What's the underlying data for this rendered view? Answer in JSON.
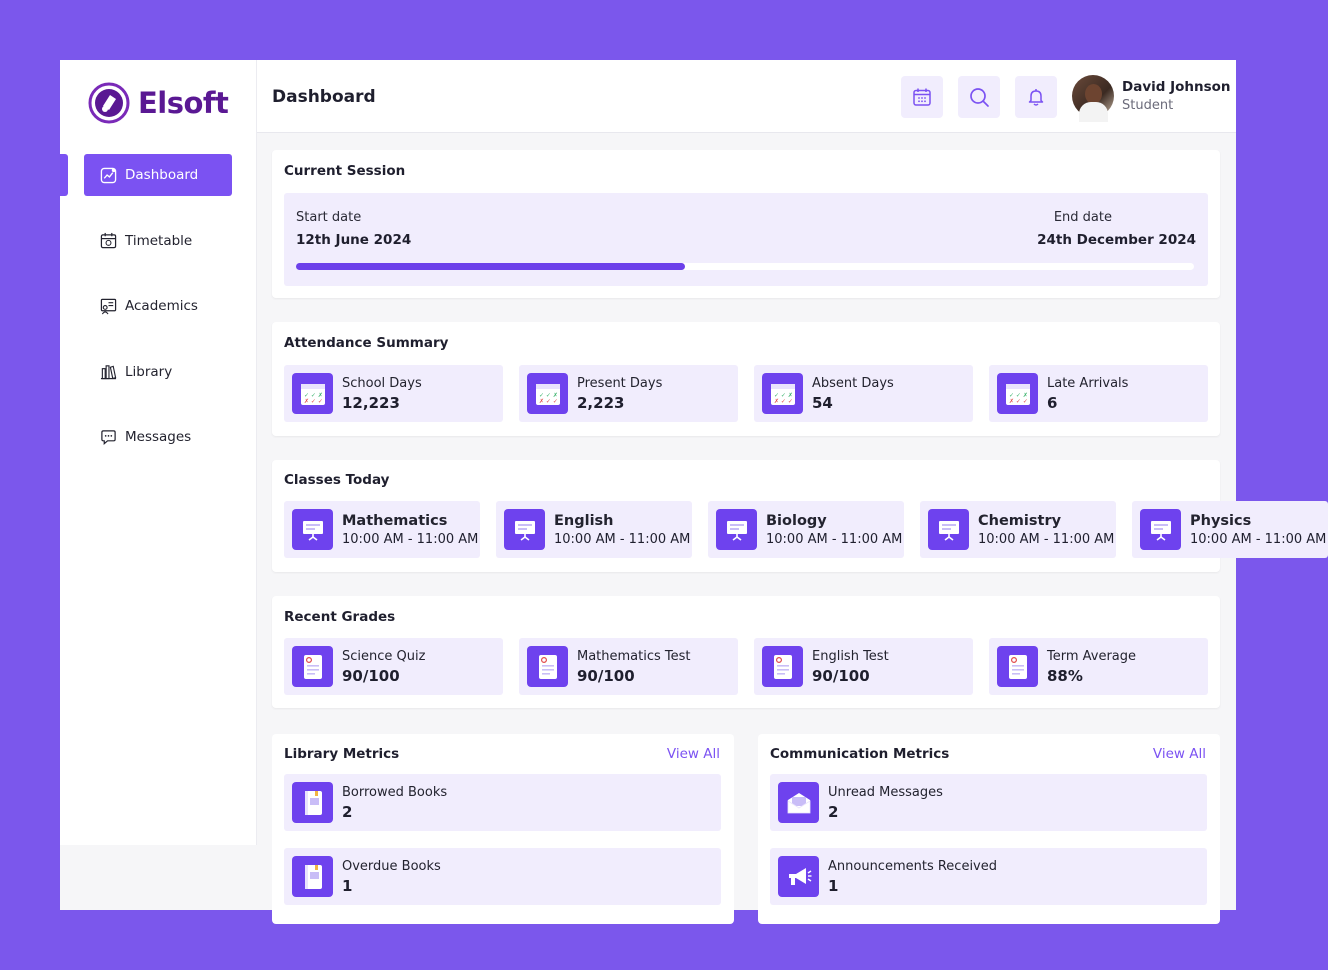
{
  "brand": {
    "name": "Elsoft"
  },
  "nav": [
    {
      "label": "Dashboard",
      "icon": "dashboard-icon",
      "active": true
    },
    {
      "label": "Timetable",
      "icon": "calendar-icon",
      "active": false
    },
    {
      "label": "Academics",
      "icon": "academics-icon",
      "active": false
    },
    {
      "label": "Library",
      "icon": "library-icon",
      "active": false
    },
    {
      "label": "Messages",
      "icon": "messages-icon",
      "active": false
    }
  ],
  "header": {
    "title": "Dashboard",
    "user": {
      "name": "David Johnson",
      "role": "Student"
    }
  },
  "session": {
    "title": "Current Session",
    "start_label": "Start date",
    "start_value": "12th June 2024",
    "end_label": "End date",
    "end_value": "24th December 2024",
    "progress": 0.433
  },
  "attendance": {
    "title": "Attendance Summary",
    "items": [
      {
        "label": "School Days",
        "value": "12,223"
      },
      {
        "label": "Present Days",
        "value": "2,223"
      },
      {
        "label": "Absent Days",
        "value": "54"
      },
      {
        "label": "Late Arrivals",
        "value": "6"
      }
    ]
  },
  "classes": {
    "title": "Classes Today",
    "items": [
      {
        "label": "Mathematics",
        "time": "10:00 AM - 11:00 AM"
      },
      {
        "label": "English",
        "time": "10:00 AM - 11:00 AM"
      },
      {
        "label": "Biology",
        "time": "10:00 AM - 11:00 AM"
      },
      {
        "label": "Chemistry",
        "time": "10:00 AM - 11:00 AM"
      },
      {
        "label": "Physics",
        "time": "10:00 AM - 11:00 AM"
      }
    ]
  },
  "grades": {
    "title": "Recent Grades",
    "items": [
      {
        "label": "Science Quiz",
        "value": "90/100"
      },
      {
        "label": "Mathematics Test",
        "value": "90/100"
      },
      {
        "label": "English Test",
        "value": "90/100"
      },
      {
        "label": "Term Average",
        "value": "88%"
      }
    ]
  },
  "library": {
    "title": "Library Metrics",
    "view_all": "View All",
    "items": [
      {
        "label": "Borrowed Books",
        "value": "2"
      },
      {
        "label": "Overdue Books",
        "value": "1"
      }
    ]
  },
  "communication": {
    "title": "Communication Metrics",
    "view_all": "View All",
    "items": [
      {
        "label": "Unread Messages",
        "value": "2"
      },
      {
        "label": "Announcements Received",
        "value": "1"
      }
    ]
  },
  "colors": {
    "accent": "#7b52f2",
    "brand": "#5a1893",
    "tile_bg": "#f1edfd",
    "page_bg": "#7b57ec"
  }
}
